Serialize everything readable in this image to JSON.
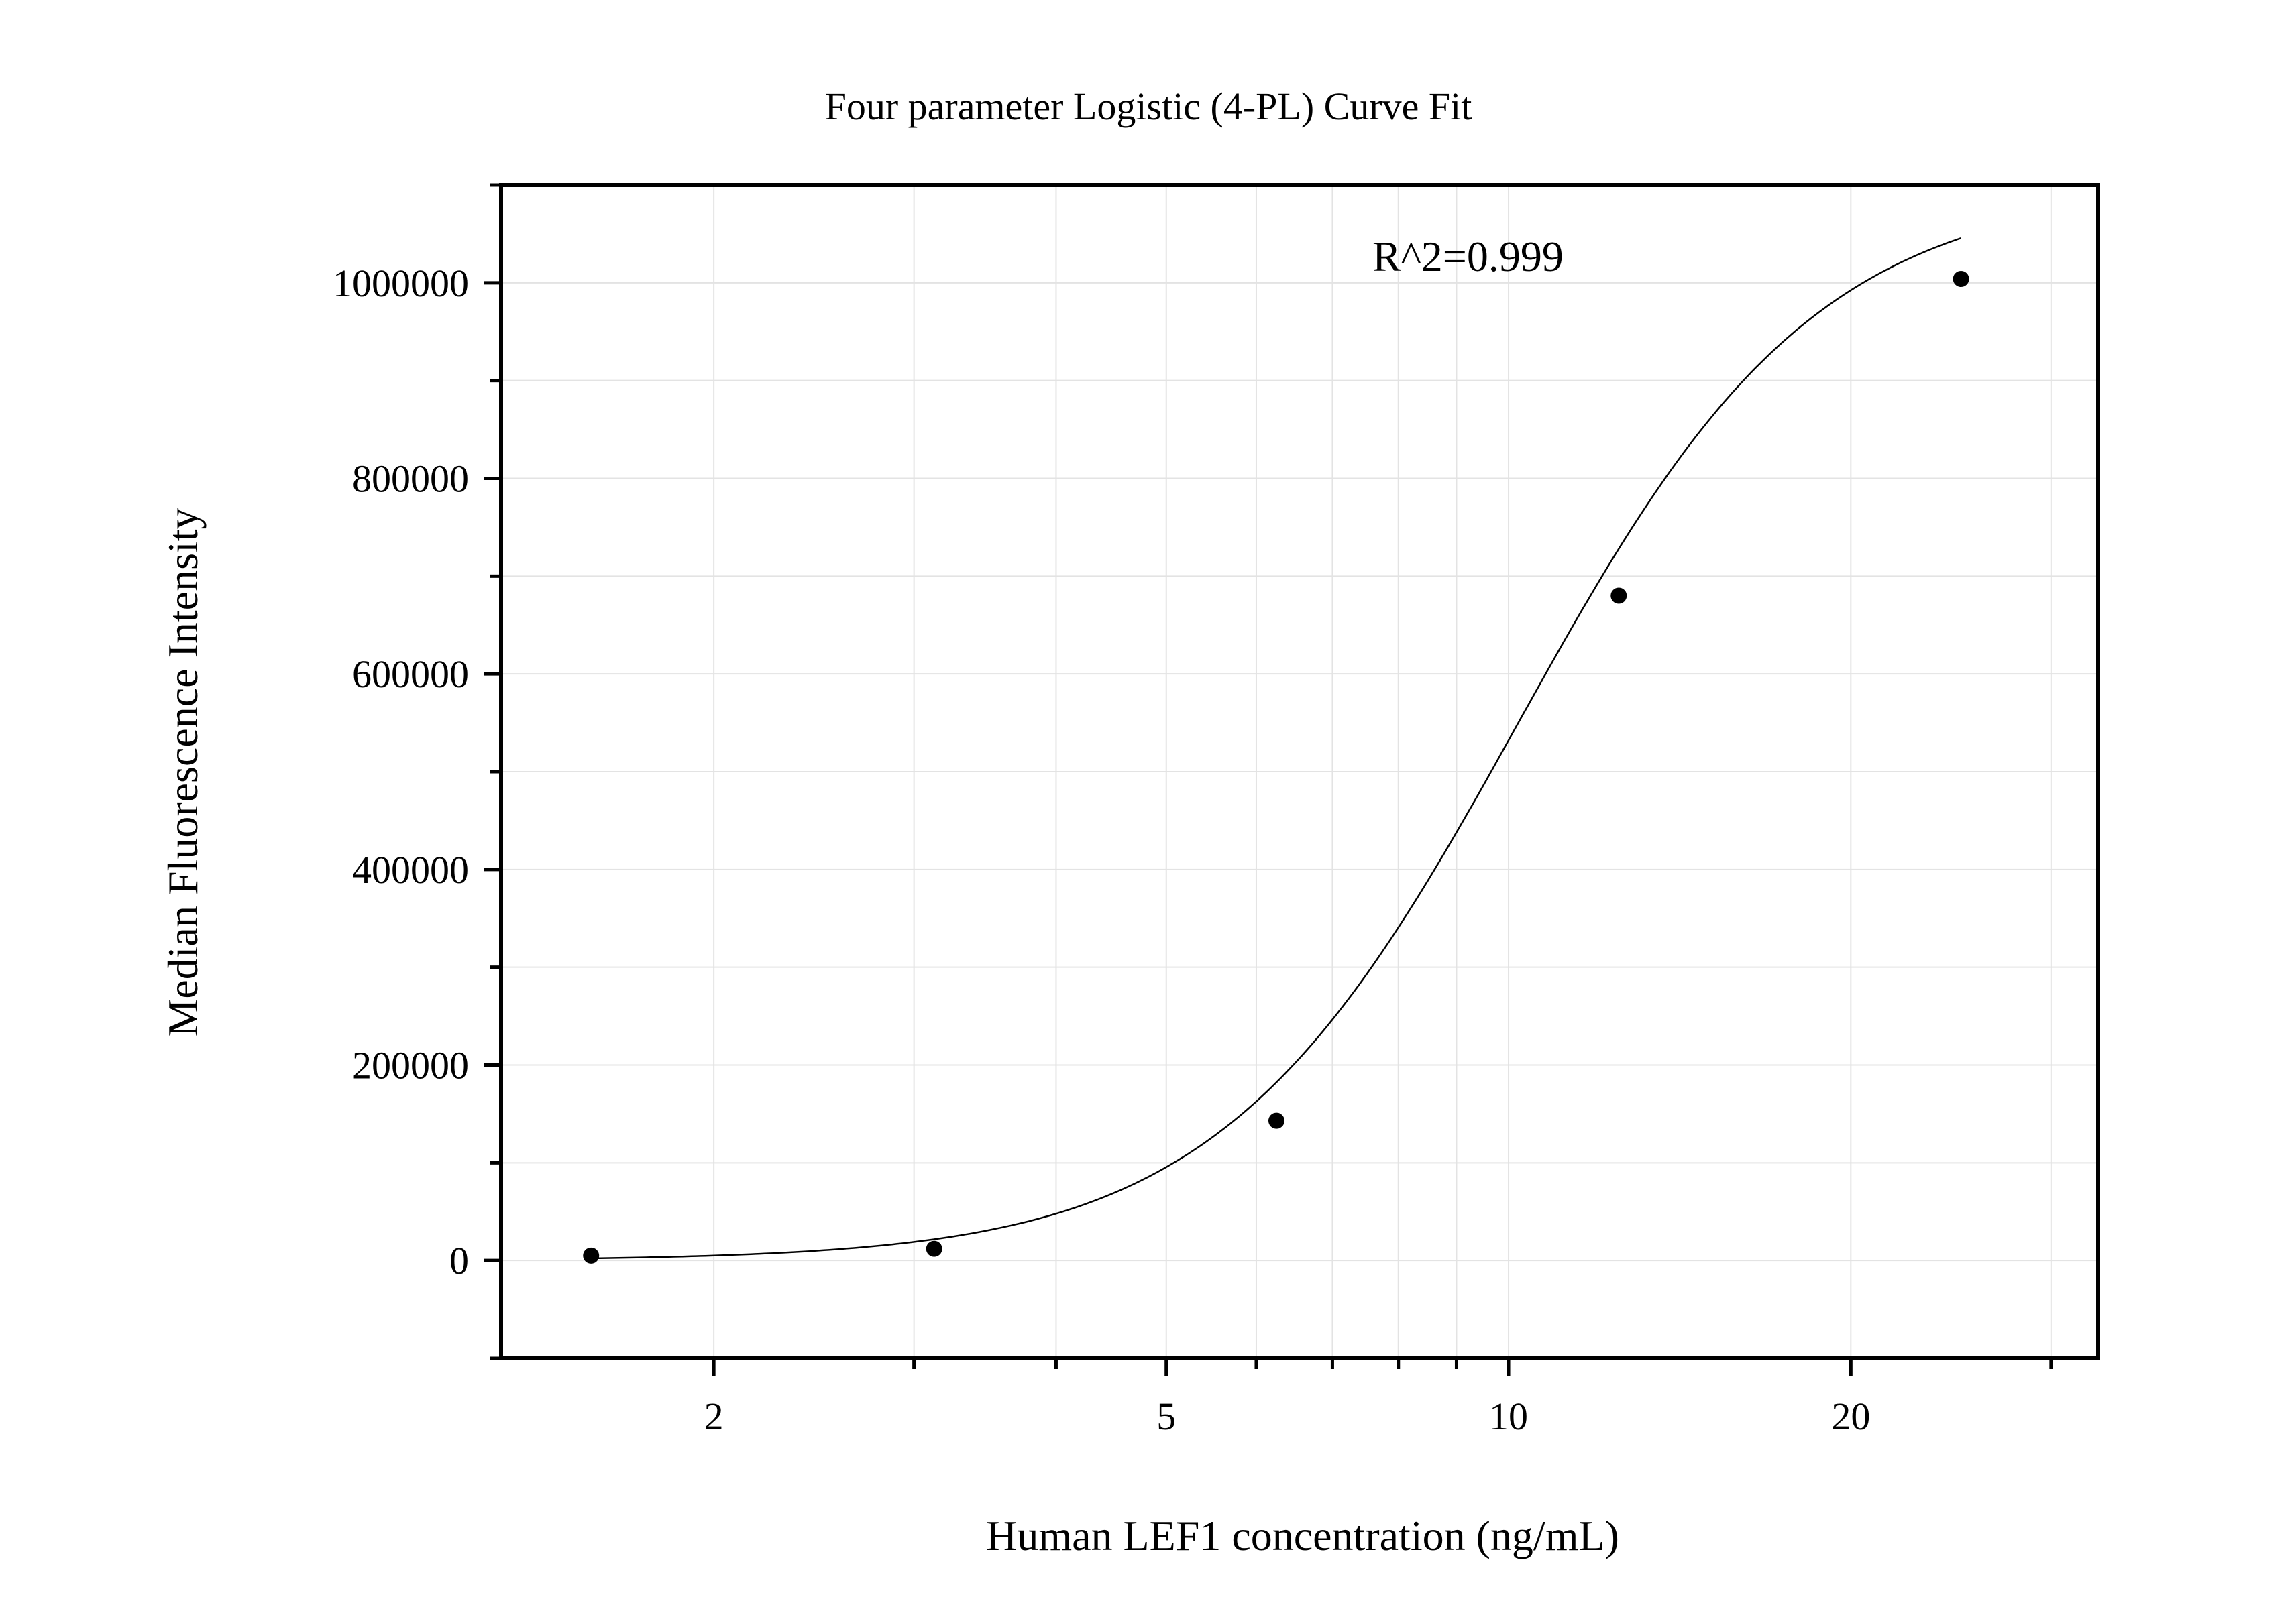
{
  "chart_data": {
    "type": "scatter",
    "title": "Four parameter Logistic (4-PL) Curve Fit",
    "xlabel": "Human LEF1 concentration (ng/mL)",
    "ylabel": "Median Fluorescence Intensity",
    "xscale": "log",
    "xlim": [
      1.3,
      33
    ],
    "ylim": [
      -100000,
      1100000
    ],
    "x_ticks": [
      2,
      5,
      10,
      20
    ],
    "x_tick_labels": [
      "2",
      "5",
      "10",
      "20"
    ],
    "y_ticks": [
      0,
      200000,
      400000,
      600000,
      800000,
      1000000
    ],
    "y_tick_labels": [
      "0",
      "200000",
      "400000",
      "600000",
      "800000",
      "1000000"
    ],
    "grid": true,
    "annotation": "R^2=0.999",
    "points": [
      {
        "x": 1.56,
        "y": 5000
      },
      {
        "x": 3.125,
        "y": 12000
      },
      {
        "x": 6.25,
        "y": 143000
      },
      {
        "x": 12.5,
        "y": 680000
      },
      {
        "x": 25,
        "y": 1004000
      }
    ],
    "fit": {
      "model": "4PL",
      "A": 0,
      "D": 1100000,
      "C": 10.2,
      "B": 3.3
    }
  }
}
